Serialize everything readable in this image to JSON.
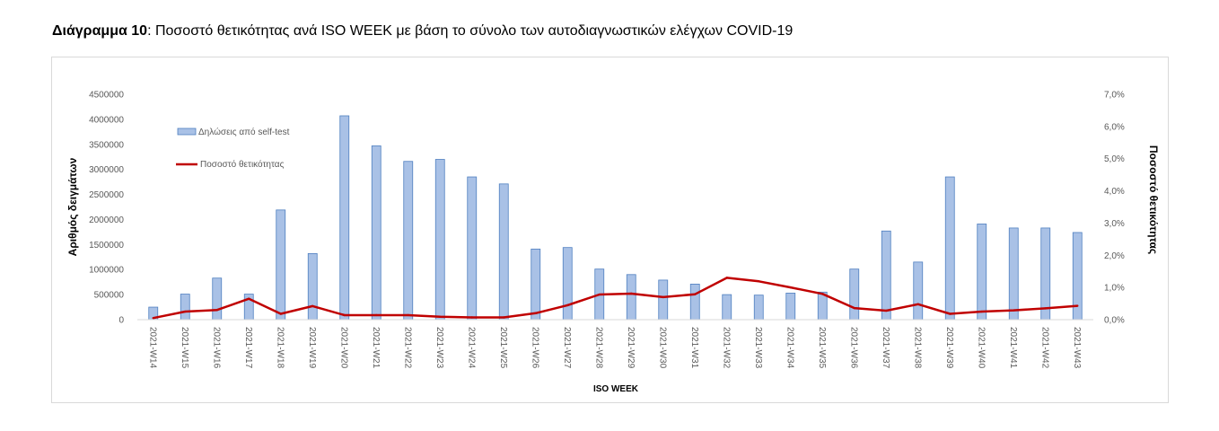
{
  "heading": {
    "bold": "Διάγραμμα 10",
    "rest": ": Ποσοστό θετικότητας ανά ISO WEEK με βάση το σύνολο των αυτοδιαγνωστικών ελέγχων COVID-19"
  },
  "chart_data": {
    "type": "bar",
    "xlabel": "ISO WEEK",
    "ylabel": "Αριθμός δειγμάτων",
    "y2label": "Ποσοστό θετικότητας",
    "ylim": [
      0,
      4500000
    ],
    "y2lim": [
      0,
      7.0
    ],
    "y_ticks": [
      "0",
      "500000",
      "1000000",
      "1500000",
      "2000000",
      "2500000",
      "3000000",
      "3500000",
      "4000000",
      "4500000"
    ],
    "y2_ticks": [
      "0,0%",
      "1,0%",
      "2,0%",
      "3,0%",
      "4,0%",
      "5,0%",
      "6,0%",
      "7,0%"
    ],
    "categories": [
      "2021-W14",
      "2021-W15",
      "2021-W16",
      "2021-W17",
      "2021-W18",
      "2021-W19",
      "2021-W20",
      "2021-W21",
      "2021-W22",
      "2021-W23",
      "2021-W24",
      "2021-W25",
      "2021-W26",
      "2021-W27",
      "2021-W28",
      "2021-W29",
      "2021-W30",
      "2021-W31",
      "2021-W32",
      "2021-W33",
      "2021-W34",
      "2021-W35",
      "2021-W36",
      "2021-W37",
      "2021-W38",
      "2021-W39",
      "2021-W40",
      "2021-W41",
      "2021-W42",
      "2021-W43"
    ],
    "grid": false,
    "legend_position": "top-left",
    "series": [
      {
        "name": "Δηλώσεις από self-test",
        "kind": "bar",
        "axis": "left",
        "color": "#a9c1e6",
        "edge_color": "#4f7fc0",
        "values": [
          250000,
          510000,
          830000,
          510000,
          2190000,
          1320000,
          4070000,
          3470000,
          3160000,
          3200000,
          2850000,
          2710000,
          1410000,
          1440000,
          1010000,
          900000,
          790000,
          710000,
          500000,
          490000,
          530000,
          550000,
          1010000,
          1770000,
          1150000,
          2850000,
          1910000,
          1830000,
          1830000,
          1740000
        ]
      },
      {
        "name": "Ποσοστό θετικότητας",
        "kind": "line",
        "axis": "right",
        "color": "#c00000",
        "values": [
          0.05,
          0.25,
          0.3,
          0.65,
          0.18,
          0.42,
          0.14,
          0.14,
          0.14,
          0.09,
          0.07,
          0.07,
          0.2,
          0.45,
          0.78,
          0.81,
          0.7,
          0.79,
          1.3,
          1.19,
          1.0,
          0.8,
          0.36,
          0.28,
          0.48,
          0.18,
          0.25,
          0.29,
          0.35,
          0.43
        ]
      }
    ]
  }
}
